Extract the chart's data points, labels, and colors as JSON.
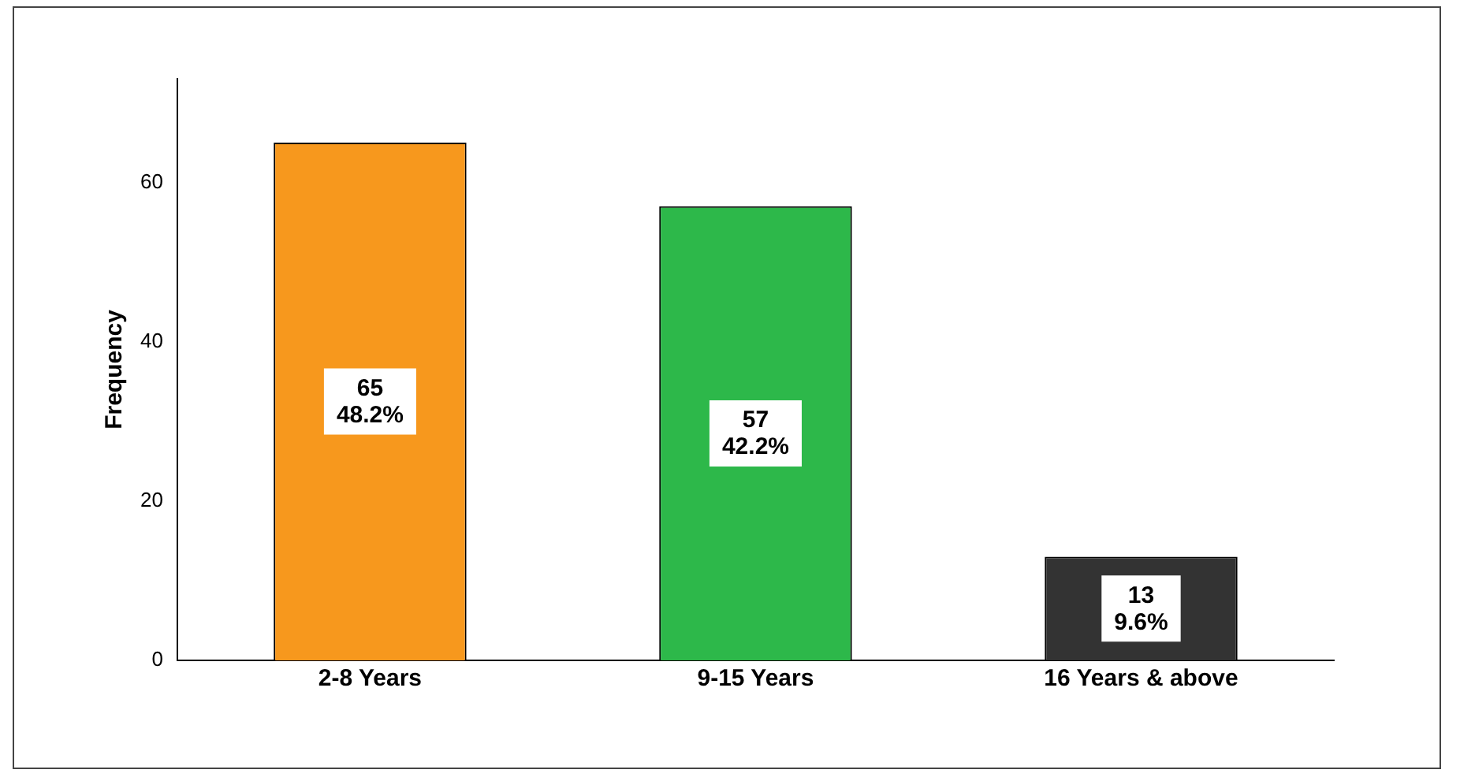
{
  "chart_data": {
    "type": "bar",
    "ylabel": "Frequency",
    "categories": [
      "2-8 Years",
      "9-15 Years",
      "16 Years & above"
    ],
    "values": [
      65,
      57,
      13
    ],
    "colors": [
      "#f7981d",
      "#2db84a",
      "#333333"
    ],
    "value_labels": [
      "65\n48.2%",
      "57\n42.2%",
      "13\n9.6%"
    ],
    "ylim": [
      0,
      73
    ],
    "yticks": [
      0,
      20,
      40,
      60
    ],
    "grid": false,
    "legend": false
  }
}
